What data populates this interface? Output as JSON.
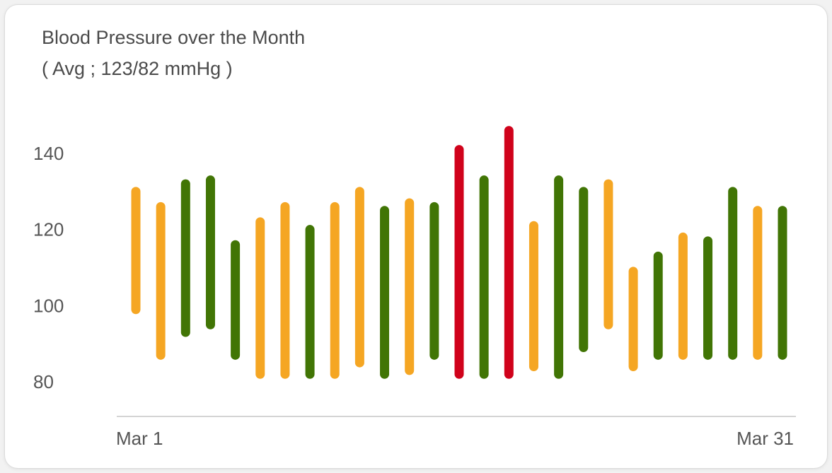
{
  "title": "Blood Pressure over the Month",
  "subtitle": "( Avg ; 123/82 mmHg )",
  "colors": {
    "normal": "#417505",
    "elevated": "#f5a623",
    "high": "#d0021b",
    "axis": "#d4d4d4",
    "text": "#4a4a4a"
  },
  "chart_data": {
    "type": "range-bar",
    "title": "Blood Pressure over the Month",
    "subtitle": "( Avg ; 123/82 mmHg )",
    "ylim": [
      72,
      148
    ],
    "yticks": [
      80,
      100,
      120,
      140
    ],
    "x_tick_labels": [
      "Mar 1",
      "Mar 31"
    ],
    "grid": false,
    "legend": "none",
    "bars": [
      {
        "low": 99,
        "high": 130,
        "status": "elevated"
      },
      {
        "low": 87,
        "high": 126,
        "status": "elevated"
      },
      {
        "low": 93,
        "high": 132,
        "status": "normal"
      },
      {
        "low": 95,
        "high": 133,
        "status": "normal"
      },
      {
        "low": 87,
        "high": 116,
        "status": "normal"
      },
      {
        "low": 82,
        "high": 122,
        "status": "elevated"
      },
      {
        "low": 82,
        "high": 126,
        "status": "elevated"
      },
      {
        "low": 82,
        "high": 120,
        "status": "normal"
      },
      {
        "low": 82,
        "high": 126,
        "status": "elevated"
      },
      {
        "low": 85,
        "high": 130,
        "status": "elevated"
      },
      {
        "low": 82,
        "high": 125,
        "status": "normal"
      },
      {
        "low": 83,
        "high": 127,
        "status": "elevated"
      },
      {
        "low": 87,
        "high": 126,
        "status": "normal"
      },
      {
        "low": 82,
        "high": 141,
        "status": "high"
      },
      {
        "low": 82,
        "high": 133,
        "status": "normal"
      },
      {
        "low": 82,
        "high": 146,
        "status": "high"
      },
      {
        "low": 84,
        "high": 121,
        "status": "elevated"
      },
      {
        "low": 82,
        "high": 133,
        "status": "normal"
      },
      {
        "low": 89,
        "high": 130,
        "status": "normal"
      },
      {
        "low": 95,
        "high": 132,
        "status": "elevated"
      },
      {
        "low": 84,
        "high": 109,
        "status": "elevated"
      },
      {
        "low": 87,
        "high": 113,
        "status": "normal"
      },
      {
        "low": 87,
        "high": 118,
        "status": "elevated"
      },
      {
        "low": 87,
        "high": 117,
        "status": "normal"
      },
      {
        "low": 87,
        "high": 130,
        "status": "normal"
      },
      {
        "low": 87,
        "high": 125,
        "status": "elevated"
      },
      {
        "low": 87,
        "high": 125,
        "status": "normal"
      }
    ]
  }
}
